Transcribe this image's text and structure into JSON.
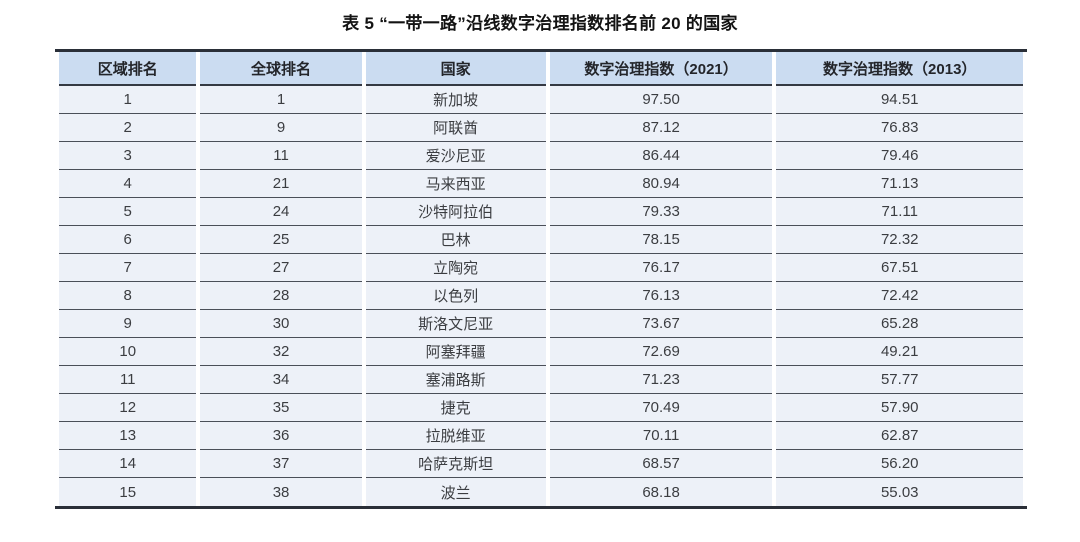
{
  "title": "表 5  “一带一路”沿线数字治理指数排名前 20 的国家",
  "colors": {
    "header_bg": "#cbdcf1",
    "row_bg": "#edf1f8",
    "border_thick": "#2a2f38",
    "border_thin": "#4a4f58",
    "text": "#3b3d41"
  },
  "table": {
    "column_keys": [
      "regional-rank",
      "global-rank",
      "country",
      "index-2021",
      "index-2013"
    ],
    "headers": [
      "区域排名",
      "全球排名",
      "国家",
      "数字治理指数（2021）",
      "数字治理指数（2013）"
    ],
    "rows": [
      [
        "1",
        "1",
        "新加坡",
        "97.50",
        "94.51"
      ],
      [
        "2",
        "9",
        "阿联酋",
        "87.12",
        "76.83"
      ],
      [
        "3",
        "11",
        "爱沙尼亚",
        "86.44",
        "79.46"
      ],
      [
        "4",
        "21",
        "马来西亚",
        "80.94",
        "71.13"
      ],
      [
        "5",
        "24",
        "沙特阿拉伯",
        "79.33",
        "71.11"
      ],
      [
        "6",
        "25",
        "巴林",
        "78.15",
        "72.32"
      ],
      [
        "7",
        "27",
        "立陶宛",
        "76.17",
        "67.51"
      ],
      [
        "8",
        "28",
        "以色列",
        "76.13",
        "72.42"
      ],
      [
        "9",
        "30",
        "斯洛文尼亚",
        "73.67",
        "65.28"
      ],
      [
        "10",
        "32",
        "阿塞拜疆",
        "72.69",
        "49.21"
      ],
      [
        "11",
        "34",
        "塞浦路斯",
        "71.23",
        "57.77"
      ],
      [
        "12",
        "35",
        "捷克",
        "70.49",
        "57.90"
      ],
      [
        "13",
        "36",
        "拉脱维亚",
        "70.11",
        "62.87"
      ],
      [
        "14",
        "37",
        "哈萨克斯坦",
        "68.57",
        "56.20"
      ],
      [
        "15",
        "38",
        "波兰",
        "68.18",
        "55.03"
      ]
    ]
  }
}
